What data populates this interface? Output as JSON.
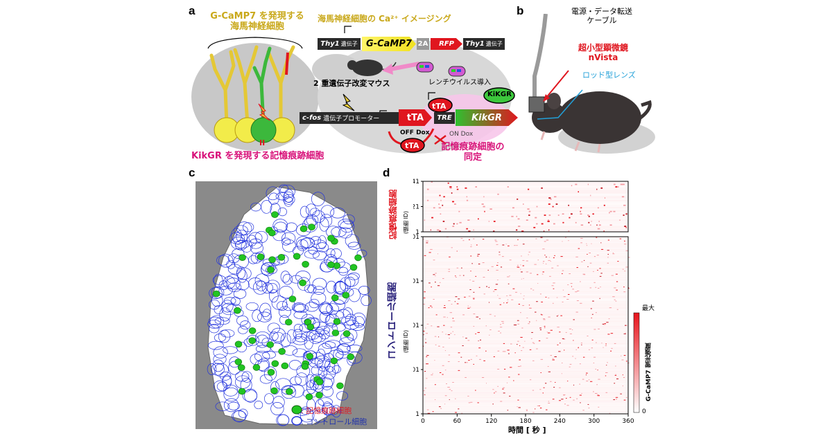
{
  "panel_a": {
    "label": "a",
    "neuron_title": "G-CaMP7 を発現する\n海馬神経細胞",
    "imaging_title": "海馬神経細胞の Ca²⁺ イメージング",
    "thy1_left": "Thy1",
    "thy1_suffix": "遺伝子",
    "gcamp7": "G-CaMP7",
    "two_a": "2A",
    "rfp": "RFP",
    "thy1_right": "Thy1",
    "mouse_label": "2 重遺伝子改変マウス",
    "lentivirus": "レンチウイルス導入",
    "kikgr_circle": "KiKGR",
    "cfos": "c-fos",
    "promoter": "遺伝子プロモーター",
    "tta": "tTA",
    "tre": "TRE",
    "kikgr_bar": "KikGR",
    "off_dox": "OFF Dox",
    "on_dox": "ON Dox",
    "equal_sign": "II",
    "memory_cells_label": "KikGR を発現する記憶痕跡細胞",
    "identify_label": "記憶痕跡細胞の\n同定"
  },
  "panel_b": {
    "label": "b",
    "cable": "電源・データ転送\nケーブル",
    "microscope": "超小型顕微鏡\nnVista",
    "lens": "ロッド型レンズ"
  },
  "panel_c": {
    "label": "c",
    "legend_memory": ": 記憶痕跡細胞",
    "legend_control": ": コントロール細胞",
    "colors": {
      "memory": "#22c422",
      "control": "#2233dd",
      "bg": "#8a8a8a"
    }
  },
  "panel_d": {
    "label": "d",
    "top_ylabel": "記憶痕跡細胞",
    "top_ylabel_sub": "(細胞 ID)",
    "bottom_ylabel": "コントロール細胞",
    "bottom_ylabel_sub": "(細胞 ID)",
    "colorbar_max": "最大",
    "colorbar_min": "0",
    "colorbar_label": "G-CaMP7 蛍光強度",
    "xlabel": "時間 [ 秒 ]"
  },
  "chart_data": [
    {
      "type": "heatmap",
      "title": "",
      "xlabel": "",
      "ylabel": "記憶痕跡細胞 (細胞 ID)",
      "x_ticks": [
        0,
        60,
        120,
        180,
        240,
        300,
        360
      ],
      "y_ticks": [
        "1",
        "21",
        "41"
      ],
      "xlim": [
        0,
        360
      ],
      "ylim": [
        1,
        41
      ]
    },
    {
      "type": "heatmap",
      "title": "",
      "xlabel": "時間 [ 秒 ]",
      "ylabel": "コントロール細胞 (細胞 ID)",
      "x_ticks": [
        "0",
        "60",
        "120",
        "180",
        "240",
        "300",
        "360"
      ],
      "y_ticks": [
        "1",
        "101",
        "201",
        "301",
        "401"
      ],
      "xlim": [
        0,
        360
      ],
      "ylim": [
        1,
        401
      ],
      "colorbar": {
        "min": "0",
        "max": "最大",
        "color_low": "#ffffff",
        "color_high": "#e8141c"
      }
    }
  ]
}
